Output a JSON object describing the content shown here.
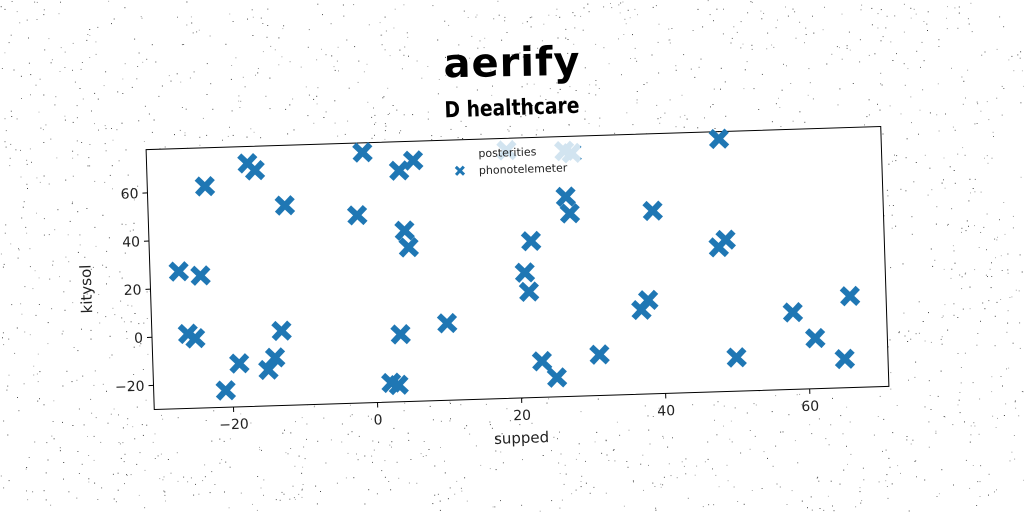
{
  "chart_data": {
    "type": "scatter",
    "title": "aerify",
    "subtitle": "D healthcare",
    "xlabel": "supped",
    "ylabel": "kitysol",
    "xlim": [
      -31,
      71
    ],
    "ylim": [
      -30,
      78
    ],
    "xticks": [
      -20,
      0,
      20,
      40,
      60
    ],
    "yticks": [
      -20,
      0,
      20,
      40,
      60
    ],
    "xtick_labels": [
      "−20",
      "0",
      "20",
      "40",
      "60"
    ],
    "ytick_labels": [
      "−20",
      "0",
      "20",
      "40",
      "60"
    ],
    "grid": false,
    "legend_position": "top-center",
    "series": [
      {
        "name": "posterities",
        "marker": "x",
        "color": "#1f77b4",
        "x": [
          19,
          27
        ],
        "y": [
          73,
          72
        ]
      },
      {
        "name": "phonotelemeter",
        "marker": "x",
        "color": "#1f77b4",
        "x": [
          -27,
          -26,
          -25,
          -24,
          -23,
          -21,
          -19,
          -17,
          -16,
          -15,
          -14,
          -13,
          -12,
          -2,
          -1,
          2,
          3,
          3.5,
          4,
          4.5,
          5,
          6,
          10,
          21,
          21.5,
          22,
          23,
          25,
          27,
          27.5,
          28,
          31,
          37,
          38,
          39,
          48,
          48.5,
          49,
          50,
          58,
          61,
          65,
          66
        ],
        "y": [
          27,
          1,
          -1,
          25,
          62,
          -23,
          -12,
          71,
          68,
          -15,
          -10,
          1,
          53,
          48,
          74,
          -22,
          -23,
          -2,
          66,
          41,
          34,
          70,
          2,
          22,
          14,
          35,
          -15,
          -22,
          53,
          46,
          71,
          -13,
          5,
          9,
          46,
          30,
          75,
          33,
          -16,
          2,
          -9,
          -18,
          8
        ]
      }
    ]
  }
}
